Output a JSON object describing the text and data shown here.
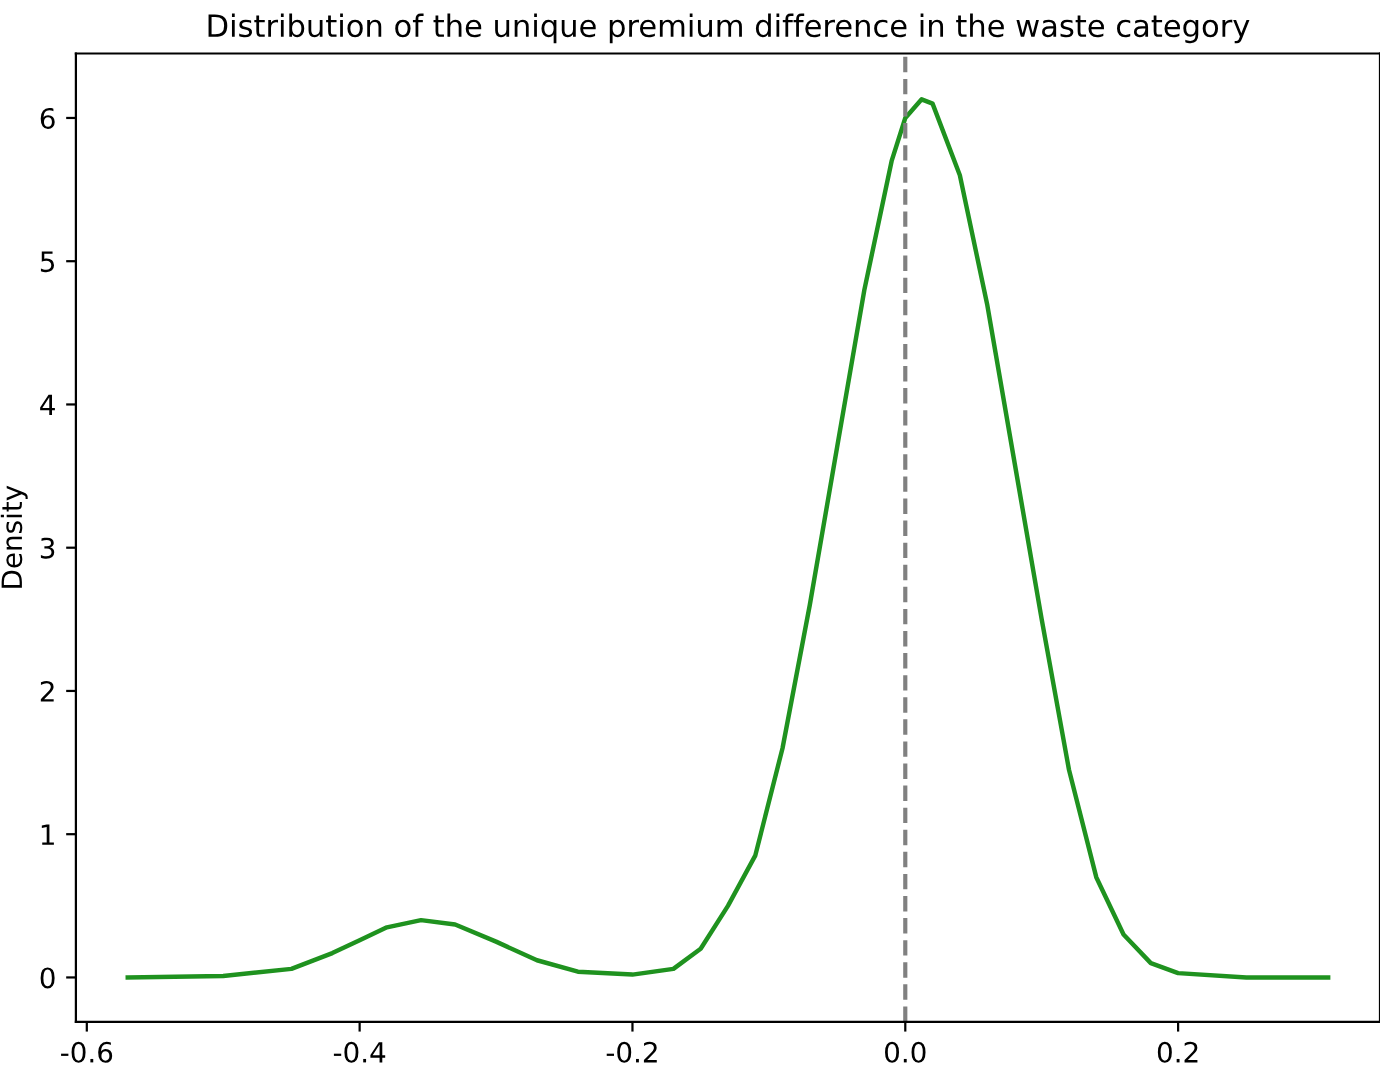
{
  "chart_data": {
    "type": "line",
    "title": "Distribution of the unique premium difference in the waste category",
    "ylabel": "Density",
    "x": [
      -0.57,
      -0.5,
      -0.45,
      -0.42,
      -0.4,
      -0.38,
      -0.355,
      -0.33,
      -0.3,
      -0.27,
      -0.24,
      -0.2,
      -0.17,
      -0.15,
      -0.13,
      -0.11,
      -0.09,
      -0.07,
      -0.05,
      -0.03,
      -0.01,
      0.0,
      0.012,
      0.02,
      0.04,
      0.06,
      0.08,
      0.1,
      0.12,
      0.14,
      0.16,
      0.18,
      0.2,
      0.25,
      0.31
    ],
    "series": [
      {
        "color": "#1f921f",
        "values": [
          0.0,
          0.01,
          0.06,
          0.17,
          0.26,
          0.35,
          0.4,
          0.37,
          0.25,
          0.12,
          0.04,
          0.02,
          0.06,
          0.2,
          0.5,
          0.85,
          1.6,
          2.6,
          3.7,
          4.8,
          5.7,
          6.0,
          6.13,
          6.1,
          5.6,
          4.7,
          3.6,
          2.5,
          1.45,
          0.7,
          0.3,
          0.1,
          0.03,
          0.0,
          0.0
        ]
      }
    ],
    "xlim": [
      -0.608,
      0.348
    ],
    "ylim": [
      -0.31,
      6.45
    ],
    "xticks": [
      -0.6,
      -0.4,
      -0.2,
      {
        "value": 0,
        "label": "0.0"
      },
      0.2
    ],
    "yticks": [
      0,
      1,
      2,
      3,
      4,
      5,
      6
    ],
    "ref_lines": [
      {
        "axis": "x",
        "value": 0.0,
        "color": "#808080",
        "line_style": "dashed"
      }
    ],
    "grid": false,
    "legend": false
  }
}
